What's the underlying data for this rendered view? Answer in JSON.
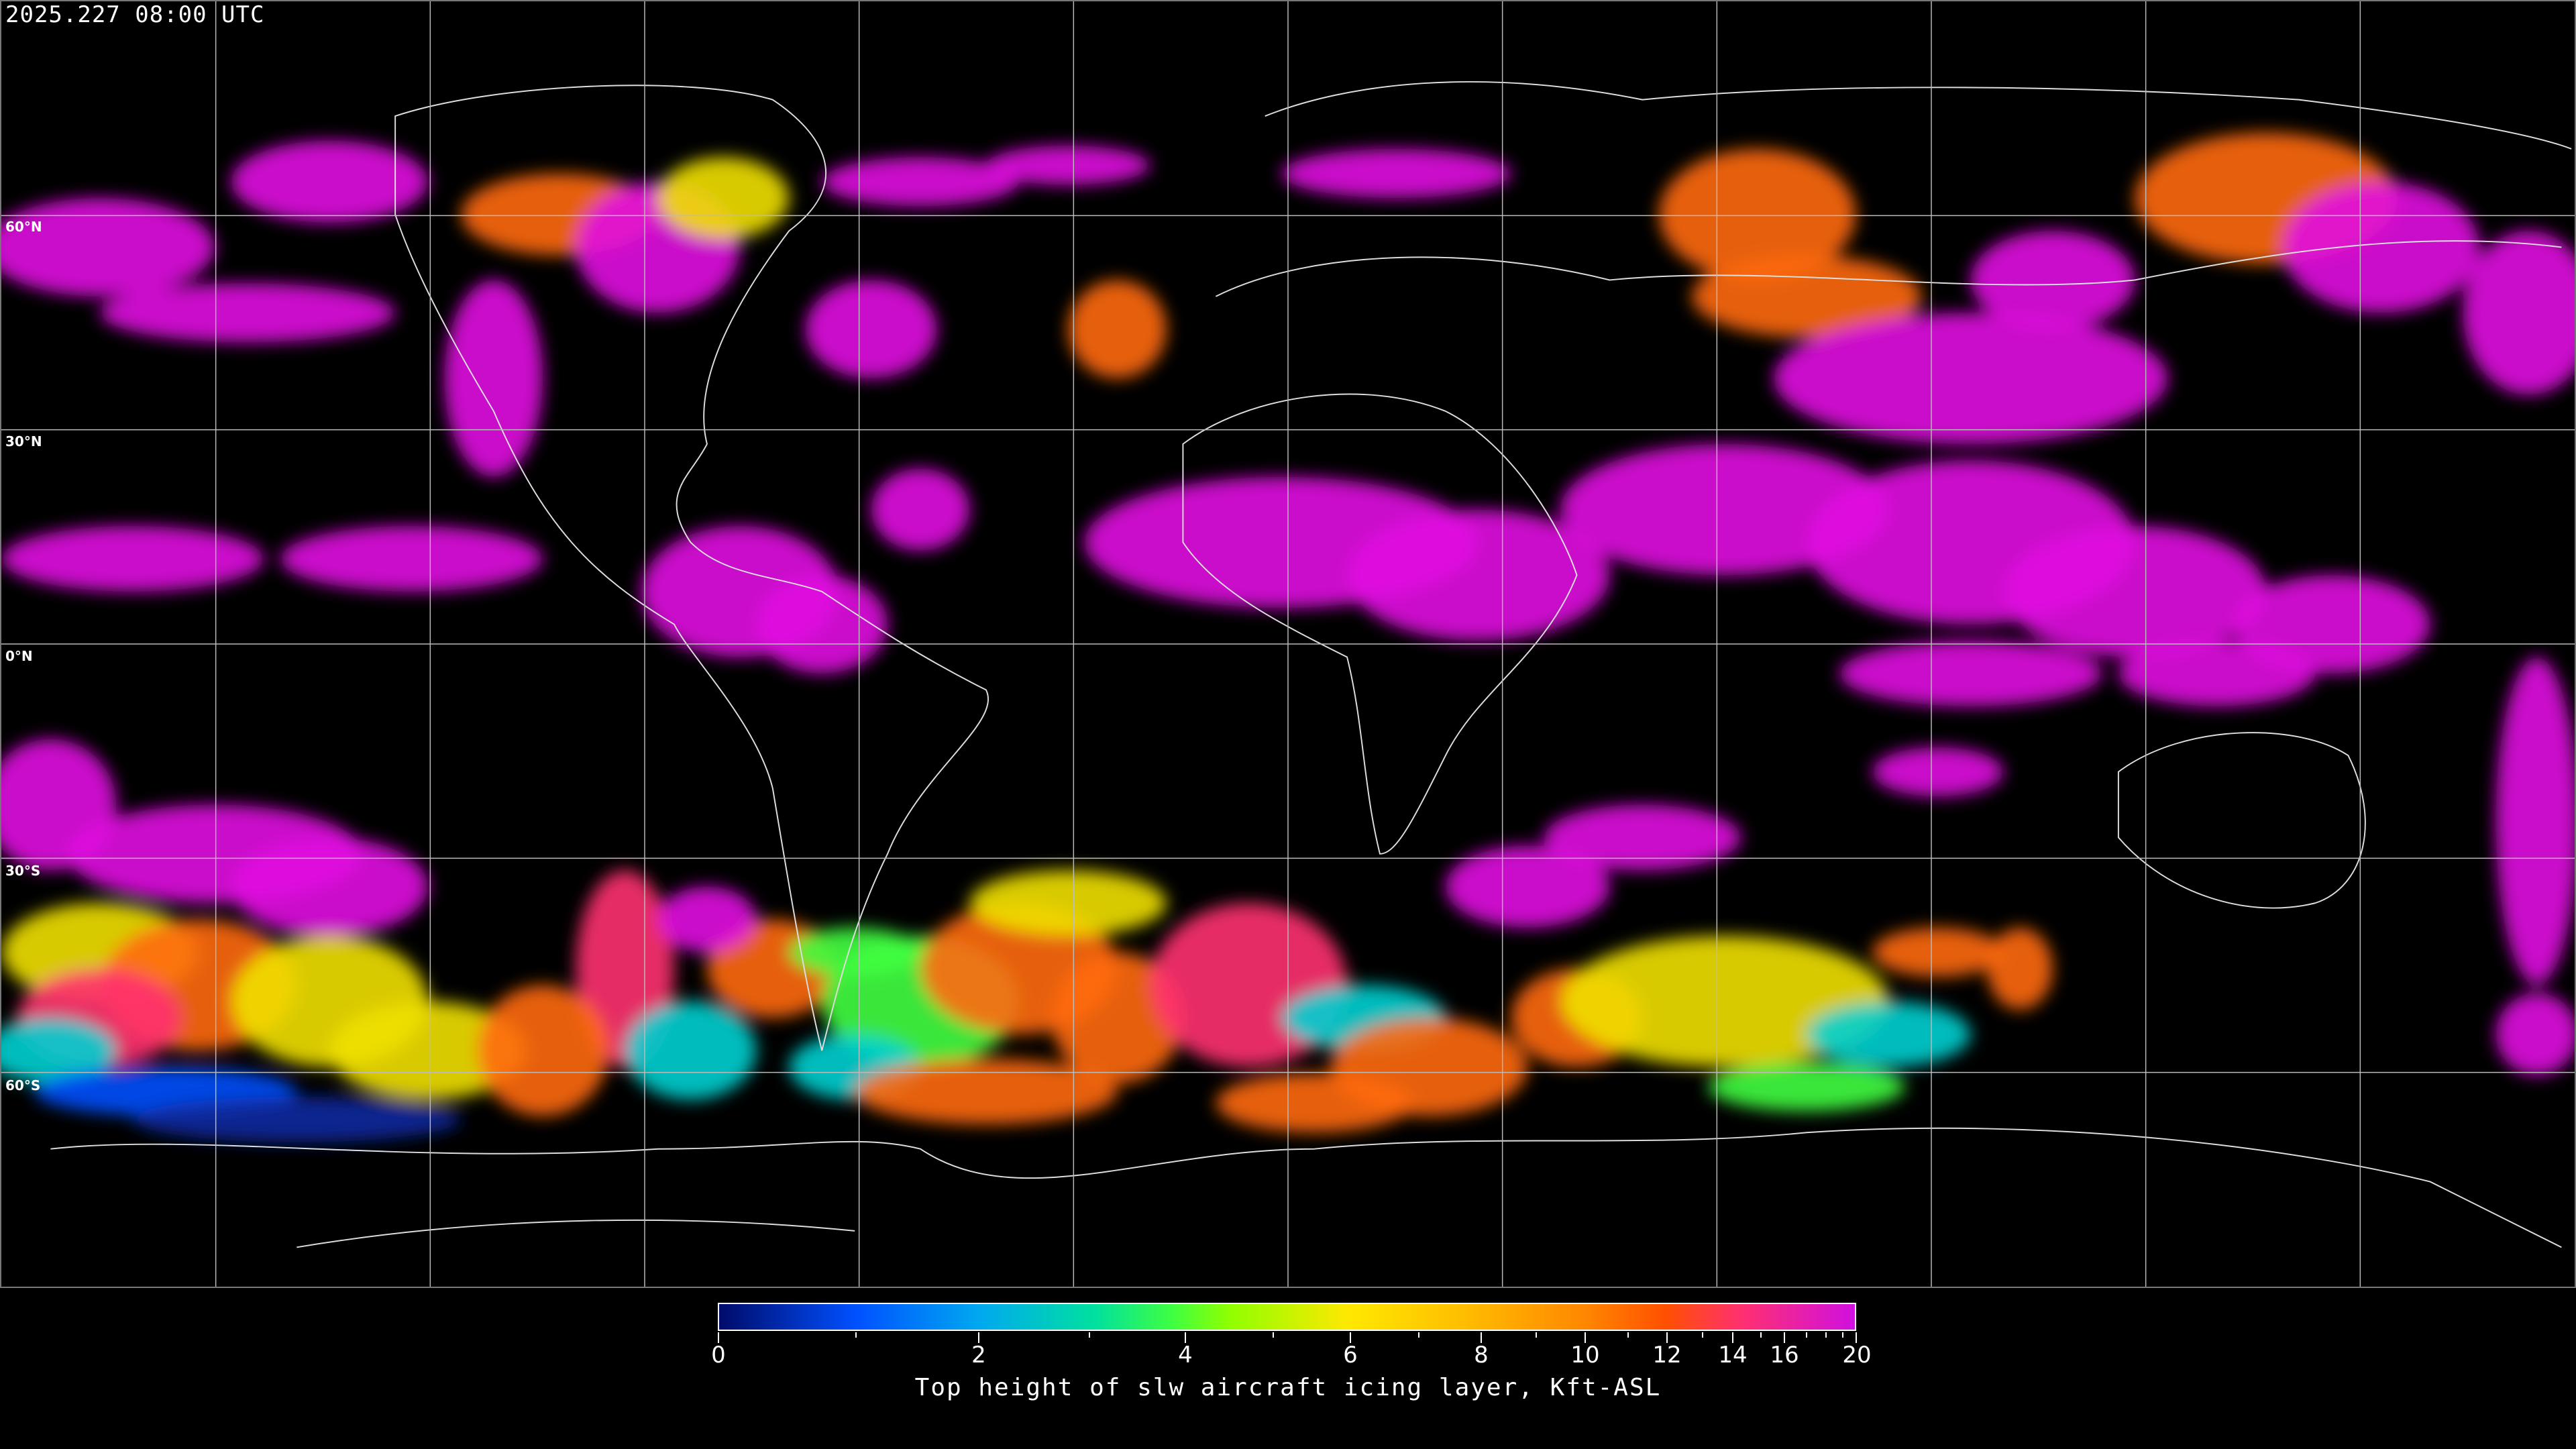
{
  "header": {
    "timestamp": "2025.227 08:00 UTC"
  },
  "map": {
    "lat_labels": [
      "60°N",
      "30°N",
      "0°N",
      "30°S",
      "60°S"
    ],
    "gridlines": true,
    "background": "#000000"
  },
  "colorbar": {
    "label": "Top height of slw aircraft icing layer, Kft-ASL",
    "range": [
      0,
      20
    ],
    "tick_labels": [
      "0",
      "2",
      "4",
      "6",
      "8",
      "10",
      "12",
      "14",
      "16",
      "20"
    ],
    "minor_ticks": [
      1,
      3,
      5,
      7,
      9,
      11,
      13,
      15,
      17,
      18,
      19
    ],
    "colors": [
      "#000b6a",
      "#0050ff",
      "#00a8f0",
      "#00e0a0",
      "#40ff40",
      "#90ff00",
      "#ffe800",
      "#ffc000",
      "#ff8800",
      "#ff5000",
      "#ff3070",
      "#d010e0"
    ]
  }
}
